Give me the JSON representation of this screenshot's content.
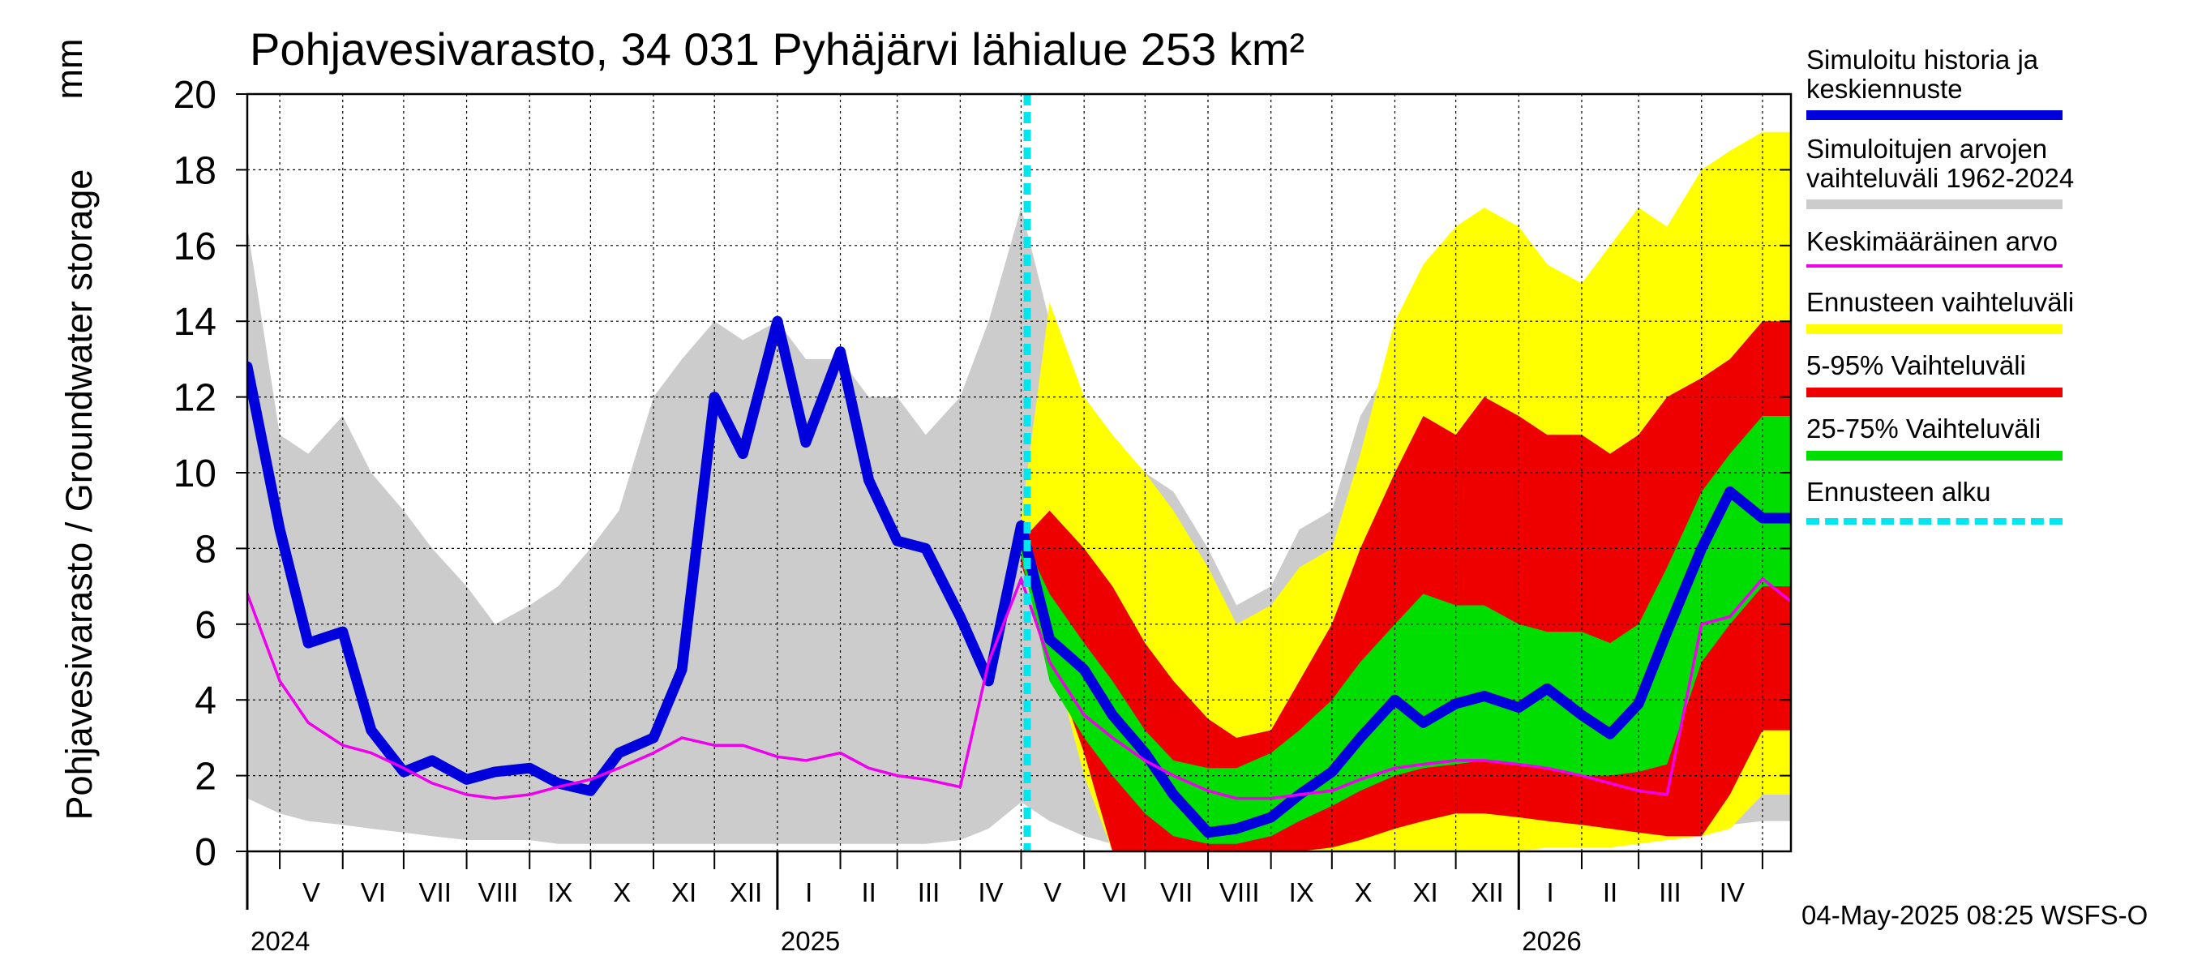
{
  "header": {
    "title": "Pohjavesivarasto, 34 031 Pyhäjärvi lähialue 253 km²",
    "ylabel": "Pohjavesivarasto / Groundwater storage",
    "unit": "mm",
    "timestamp": "04-May-2025 08:25 WSFS-O"
  },
  "legend": [
    {
      "label": "Simuloitu historia ja\nkeskiennuste",
      "color": "#0000dd"
    },
    {
      "label": "Simuloitujen arvojen\nvaihteluväli 1962-2024",
      "color": "#cccccc"
    },
    {
      "label": "Keskimääräinen arvo",
      "color": "#ee00ee"
    },
    {
      "label": "Ennusteen vaihteluväli",
      "color": "#ffff00"
    },
    {
      "label": "5-95% Vaihteluväli",
      "color": "#ee0000"
    },
    {
      "label": "25-75% Vaihteluväli",
      "color": "#00dd00"
    },
    {
      "label": "Ennusteen alku",
      "color": "#00e5ee"
    }
  ],
  "chart_data": {
    "type": "area",
    "title": "Pohjavesivarasto, 34 031 Pyhäjärvi lähialue 253 km²",
    "ylabel": "Pohjavesivarasto / Groundwater storage",
    "yunit": "mm",
    "ylim": [
      0,
      20
    ],
    "yticks": [
      0,
      2,
      4,
      6,
      8,
      10,
      12,
      14,
      16,
      18,
      20
    ],
    "xlim": [
      "2024-04-15",
      "2026-05-15"
    ],
    "grid": true,
    "legend_position": "right",
    "month_labels": [
      "V",
      "VI",
      "VII",
      "VIII",
      "IX",
      "X",
      "XI",
      "XII",
      "I",
      "II",
      "III",
      "IV",
      "V",
      "VI",
      "VII",
      "VIII",
      "IX",
      "X",
      "XI",
      "XII",
      "I",
      "II",
      "III",
      "IV"
    ],
    "year_labels": [
      "2024",
      "2025",
      "2026"
    ],
    "forecast_start": "2025-05-04",
    "x": [
      "2024-04-15",
      "2024-05-01",
      "2024-05-15",
      "2024-06-01",
      "2024-06-15",
      "2024-07-01",
      "2024-07-15",
      "2024-08-01",
      "2024-08-15",
      "2024-09-01",
      "2024-09-15",
      "2024-10-01",
      "2024-10-15",
      "2024-11-01",
      "2024-11-15",
      "2024-12-01",
      "2024-12-15",
      "2025-01-01",
      "2025-01-15",
      "2025-02-01",
      "2025-02-15",
      "2025-03-01",
      "2025-03-15",
      "2025-04-01",
      "2025-04-15",
      "2025-05-01",
      "2025-05-15",
      "2025-06-01",
      "2025-06-15",
      "2025-07-01",
      "2025-07-15",
      "2025-08-01",
      "2025-08-15",
      "2025-09-01",
      "2025-09-15",
      "2025-10-01",
      "2025-10-15",
      "2025-11-01",
      "2025-11-15",
      "2025-12-01",
      "2025-12-15",
      "2026-01-01",
      "2026-01-15",
      "2026-02-01",
      "2026-02-15",
      "2026-03-01",
      "2026-03-15",
      "2026-04-01",
      "2026-04-15",
      "2026-05-01",
      "2026-05-15"
    ],
    "series": [
      {
        "name": "Simuloitu historia ja keskiennuste",
        "values": [
          12.8,
          8.5,
          5.5,
          5.8,
          3.2,
          2.1,
          2.4,
          1.9,
          2.1,
          2.2,
          1.8,
          1.6,
          2.6,
          3.0,
          4.8,
          12.0,
          10.5,
          14.0,
          10.8,
          13.2,
          9.8,
          8.2,
          8.0,
          6.2,
          4.5,
          8.6,
          5.6,
          4.8,
          3.6,
          2.6,
          1.5,
          0.5,
          0.6,
          0.9,
          1.5,
          2.1,
          3.0,
          4.0,
          3.4,
          3.9,
          4.1,
          3.8,
          4.3,
          3.6,
          3.1,
          3.9,
          5.8,
          8.0,
          9.5,
          8.8,
          8.8
        ]
      },
      {
        "name": "Simuloitujen arvojen vaihteluväli 1962-2024",
        "lower": [
          1.4,
          1.0,
          0.8,
          0.7,
          0.6,
          0.5,
          0.4,
          0.3,
          0.3,
          0.3,
          0.2,
          0.2,
          0.2,
          0.2,
          0.2,
          0.2,
          0.2,
          0.2,
          0.2,
          0.2,
          0.2,
          0.2,
          0.2,
          0.3,
          0.6,
          1.3,
          0.8,
          0.4,
          0.2,
          0.1,
          0.1,
          0.1,
          0.1,
          0.1,
          0.1,
          0.1,
          0.1,
          0.1,
          0.1,
          0.2,
          0.2,
          0.2,
          0.2,
          0.3,
          0.3,
          0.4,
          0.5,
          0.6,
          0.7,
          0.8,
          0.8
        ],
        "upper": [
          16.5,
          11.0,
          10.5,
          11.5,
          10.0,
          9.0,
          8.0,
          7.0,
          6.0,
          6.5,
          7.0,
          8.0,
          9.0,
          12.0,
          13.0,
          14.0,
          13.5,
          14.0,
          13.0,
          13.0,
          12.0,
          12.0,
          11.0,
          12.0,
          14.0,
          17.0,
          14.0,
          12.0,
          10.5,
          10.0,
          9.5,
          8.0,
          6.5,
          7.0,
          8.5,
          9.0,
          11.5,
          13.0,
          12.0,
          11.0,
          11.5,
          11.5,
          11.0,
          11.5,
          12.0,
          13.0,
          15.0,
          16.0,
          17.0,
          17.5,
          17.5
        ]
      },
      {
        "name": "Keskimääräinen arvo",
        "values": [
          6.8,
          4.5,
          3.4,
          2.8,
          2.6,
          2.2,
          1.8,
          1.5,
          1.4,
          1.5,
          1.7,
          1.9,
          2.2,
          2.6,
          3.0,
          2.8,
          2.8,
          2.5,
          2.4,
          2.6,
          2.2,
          2.0,
          1.9,
          1.7,
          5.0,
          7.2,
          5.0,
          3.6,
          3.0,
          2.4,
          2.0,
          1.6,
          1.4,
          1.4,
          1.5,
          1.6,
          1.9,
          2.2,
          2.3,
          2.4,
          2.4,
          2.3,
          2.2,
          2.0,
          1.8,
          1.6,
          1.5,
          6.0,
          6.2,
          7.2,
          6.6
        ]
      },
      {
        "name": "Ennusteen vaihteluväli",
        "lower": [
          null,
          null,
          null,
          null,
          null,
          null,
          null,
          null,
          null,
          null,
          null,
          null,
          null,
          null,
          null,
          null,
          null,
          null,
          null,
          null,
          null,
          null,
          null,
          null,
          null,
          7.6,
          5.5,
          2.0,
          0.0,
          0.0,
          0.0,
          0.0,
          0.0,
          0.0,
          0.0,
          0.0,
          0.0,
          0.0,
          0.0,
          0.0,
          0.0,
          0.0,
          0.1,
          0.1,
          0.1,
          0.2,
          0.3,
          0.4,
          0.6,
          1.5,
          1.5
        ],
        "upper": [
          null,
          null,
          null,
          null,
          null,
          null,
          null,
          null,
          null,
          null,
          null,
          null,
          null,
          null,
          null,
          null,
          null,
          null,
          null,
          null,
          null,
          null,
          null,
          null,
          null,
          8.8,
          14.5,
          12.0,
          11.0,
          10.0,
          9.0,
          7.5,
          6.0,
          6.5,
          7.5,
          8.0,
          10.5,
          14.0,
          15.5,
          16.5,
          17.0,
          16.5,
          15.5,
          15.0,
          16.0,
          17.0,
          16.5,
          18.0,
          18.5,
          19.0,
          19.0
        ]
      },
      {
        "name": "5-95% Vaihteluväli",
        "lower": [
          null,
          null,
          null,
          null,
          null,
          null,
          null,
          null,
          null,
          null,
          null,
          null,
          null,
          null,
          null,
          null,
          null,
          null,
          null,
          null,
          null,
          null,
          null,
          null,
          null,
          7.6,
          5.2,
          2.6,
          0.0,
          0.0,
          0.0,
          0.0,
          0.0,
          0.0,
          0.0,
          0.1,
          0.3,
          0.6,
          0.8,
          1.0,
          1.0,
          0.9,
          0.8,
          0.7,
          0.6,
          0.5,
          0.4,
          0.4,
          1.5,
          3.2,
          3.2
        ],
        "upper": [
          null,
          null,
          null,
          null,
          null,
          null,
          null,
          null,
          null,
          null,
          null,
          null,
          null,
          null,
          null,
          null,
          null,
          null,
          null,
          null,
          null,
          null,
          null,
          null,
          null,
          8.2,
          9.0,
          8.0,
          7.0,
          5.5,
          4.5,
          3.5,
          3.0,
          3.2,
          4.5,
          6.0,
          8.0,
          10.0,
          11.5,
          11.0,
          12.0,
          11.5,
          11.0,
          11.0,
          10.5,
          11.0,
          12.0,
          12.5,
          13.0,
          14.0,
          14.0
        ]
      },
      {
        "name": "25-75% Vaihteluväli",
        "lower": [
          null,
          null,
          null,
          null,
          null,
          null,
          null,
          null,
          null,
          null,
          null,
          null,
          null,
          null,
          null,
          null,
          null,
          null,
          null,
          null,
          null,
          null,
          null,
          null,
          null,
          7.8,
          4.5,
          3.0,
          2.0,
          1.0,
          0.4,
          0.2,
          0.2,
          0.4,
          0.8,
          1.2,
          1.6,
          2.0,
          2.2,
          2.3,
          2.4,
          2.3,
          2.2,
          2.0,
          2.0,
          2.1,
          2.3,
          5.0,
          6.0,
          7.0,
          7.0
        ],
        "upper": [
          null,
          null,
          null,
          null,
          null,
          null,
          null,
          null,
          null,
          null,
          null,
          null,
          null,
          null,
          null,
          null,
          null,
          null,
          null,
          null,
          null,
          null,
          null,
          null,
          null,
          8.4,
          6.8,
          5.5,
          4.5,
          3.2,
          2.4,
          2.2,
          2.2,
          2.6,
          3.2,
          4.0,
          5.0,
          6.0,
          6.8,
          6.5,
          6.5,
          6.0,
          5.8,
          5.8,
          5.5,
          6.0,
          7.5,
          9.5,
          10.5,
          11.5,
          11.5
        ]
      }
    ]
  }
}
